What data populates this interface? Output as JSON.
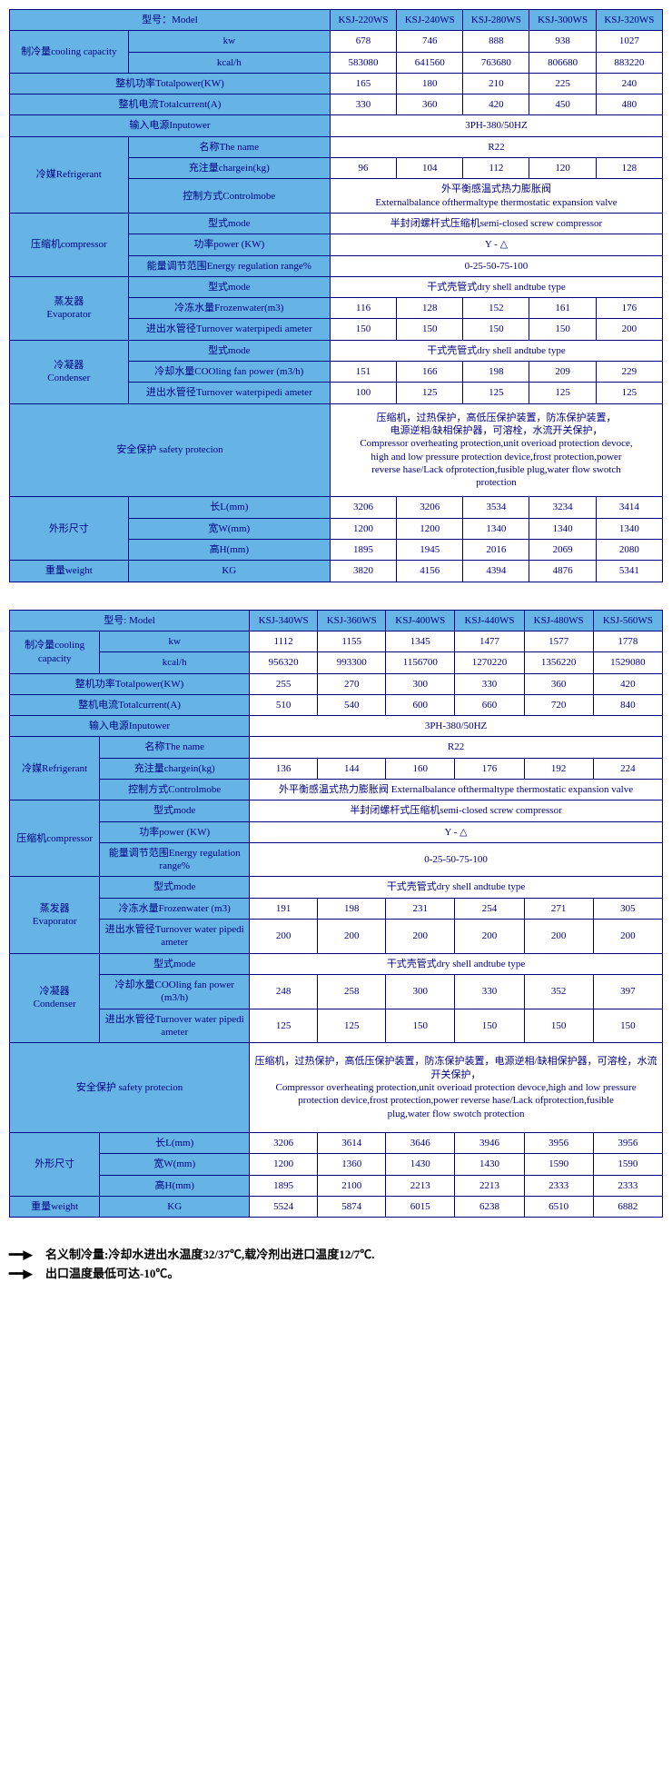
{
  "colors": {
    "header_bg": "#66b3e6",
    "cell_bg": "#ffffff",
    "border": "#000080",
    "text": "#000080"
  },
  "t1": {
    "models": [
      "KSJ-220WS",
      "KSJ-240WS",
      "KSJ-280WS",
      "KSJ-300WS",
      "KSJ-320WS"
    ],
    "lbl_model": "型号：Model",
    "lbl_cooling": "制冷量cooling capacity",
    "lbl_kw": "kw",
    "lbl_kcal": "kcal/h",
    "kw": [
      "678",
      "746",
      "888",
      "938",
      "1027"
    ],
    "kcal": [
      "583080",
      "641560",
      "763680",
      "806680",
      "883220"
    ],
    "lbl_totalpower": "整机功率Totalpower(KW)",
    "totalpower": [
      "165",
      "180",
      "210",
      "225",
      "240"
    ],
    "lbl_totalcurrent": "整机电流Totalcurrent(A)",
    "totalcurrent": [
      "330",
      "360",
      "420",
      "450",
      "480"
    ],
    "lbl_inputpower": "输入电源Inputower",
    "inputpower": "3PH-380/50HZ",
    "lbl_refrigerant": "冷媒Refrigerant",
    "lbl_thename": "名称The name",
    "thename": "R22",
    "lbl_chargein": "充注量chargein(kg)",
    "chargein": [
      "96",
      "104",
      "112",
      "120",
      "128"
    ],
    "lbl_controlmode": "控制方式Controlmobe",
    "controlmode": "外平衡感温式热力膨胀阀\nExternalbalance ofthermaltype thermostatic expansion valve",
    "lbl_compressor": "压缩机compressor",
    "lbl_mode": "型式mode",
    "compressor_mode": "半封闭螺杆式压缩机semi-closed screw compressor",
    "lbl_powerkw": "功率power (KW)",
    "powerkw": "Y - △",
    "lbl_energyrange": "能量调节范围Energy regulation range%",
    "energyrange": "0-25-50-75-100",
    "lbl_evaporator": "蒸发器\nEvaporator",
    "evap_mode": "干式壳管式dry shell andtube type",
    "lbl_frozenwater": "冷冻水量Frozenwater(m3)",
    "frozenwater": [
      "116",
      "128",
      "152",
      "161",
      "176"
    ],
    "lbl_turnover": "进出水管径Turnover waterpipedi ameter",
    "evap_turnover": [
      "150",
      "150",
      "150",
      "150",
      "200"
    ],
    "lbl_condenser": "冷凝器\nCondenser",
    "cond_mode": "干式壳管式dry shell andtube type",
    "lbl_coolingfan": "冷却水量COOling fan power (m3/h)",
    "coolingfan": [
      "151",
      "166",
      "198",
      "209",
      "229"
    ],
    "cond_turnover": [
      "100",
      "125",
      "125",
      "125",
      "125"
    ],
    "lbl_safety": "安全保护  safety protecion",
    "safety": "压缩机，过热保护，高低压保护装置，防冻保护装置，\n电源逆相/缺相保护器，可溶栓，水流开关保护，\nCompressor overheating protection,unit overioad protection devoce,\nhigh and low pressure protection device,frost protection,power\nreverse hase/Lack ofprotection,fusible plug,water flow swotch\nprotection",
    "lbl_dims": "外形尺寸",
    "lbl_L": "长L(mm)",
    "L": [
      "3206",
      "3206",
      "3534",
      "3234",
      "3414"
    ],
    "lbl_W": "宽W(mm)",
    "W": [
      "1200",
      "1200",
      "1340",
      "1340",
      "1340"
    ],
    "lbl_H": "高H(mm)",
    "H": [
      "1895",
      "1945",
      "2016",
      "2069",
      "2080"
    ],
    "lbl_weight": "重量weight",
    "lbl_kg": "KG",
    "weight": [
      "3820",
      "4156",
      "4394",
      "4876",
      "5341"
    ]
  },
  "t2": {
    "models": [
      "KSJ-340WS",
      "KSJ-360WS",
      "KSJ-400WS",
      "KSJ-440WS",
      "KSJ-480WS",
      "KSJ-560WS"
    ],
    "lbl_model": "型号: Model",
    "lbl_cooling": "制冷量cooling capacity",
    "lbl_kw": "kw",
    "lbl_kcal": "kcal/h",
    "kw": [
      "1112",
      "1155",
      "1345",
      "1477",
      "1577",
      "1778"
    ],
    "kcal": [
      "956320",
      "993300",
      "1156700",
      "1270220",
      "1356220",
      "1529080"
    ],
    "lbl_totalpower": "整机功率Totalpower(KW)",
    "totalpower": [
      "255",
      "270",
      "300",
      "330",
      "360",
      "420"
    ],
    "lbl_totalcurrent": "整机电流Totalcurrent(A)",
    "totalcurrent": [
      "510",
      "540",
      "600",
      "660",
      "720",
      "840"
    ],
    "lbl_inputpower": "输入电源Inputower",
    "inputpower": "3PH-380/50HZ",
    "lbl_refrigerant": "冷媒Refrigerant",
    "lbl_thename": "名称The name",
    "thename": "R22",
    "lbl_chargein": "充注量chargein(kg)",
    "chargein": [
      "136",
      "144",
      "160",
      "176",
      "192",
      "224"
    ],
    "lbl_controlmode": "控制方式Controlmobe",
    "controlmode": "外平衡感温式热力膨胀阀 Externalbalance ofthermaltype thermostatic expansion valve",
    "lbl_compressor": "压缩机compressor",
    "lbl_mode": "型式mode",
    "compressor_mode": "半封闭螺杆式压缩机semi-closed screw compressor",
    "lbl_powerkw": "功率power (KW)",
    "powerkw": "Y - △",
    "lbl_energyrange": "能量调节范围Energy regulation range%",
    "energyrange": "0-25-50-75-100",
    "lbl_evaporator": "蒸发器\nEvaporator",
    "evap_mode": "干式壳管式dry shell andtube type",
    "lbl_frozenwater": "冷冻水量Frozenwater (m3)",
    "frozenwater": [
      "191",
      "198",
      "231",
      "254",
      "271",
      "305"
    ],
    "lbl_turnover": "进出水管径Turnover water pipedi ameter",
    "evap_turnover": [
      "200",
      "200",
      "200",
      "200",
      "200",
      "200"
    ],
    "lbl_condenser": "冷凝器\nCondenser",
    "cond_mode": "干式壳管式dry shell andtube type",
    "lbl_coolingfan": "冷却水量COOling fan power (m3/h)",
    "coolingfan": [
      "248",
      "258",
      "300",
      "330",
      "352",
      "397"
    ],
    "cond_turnover": [
      "125",
      "125",
      "150",
      "150",
      "150",
      "150"
    ],
    "lbl_safety": "安全保护  safety protecion",
    "safety": "压缩机，过热保护，高低压保护装置，防冻保护装置，电源逆相/缺相保护器，可溶栓，水流开关保护，\nCompressor overheating protection,unit overioad protection devoce,high and low pressure\nprotection device,frost protection,power reverse hase/Lack ofprotection,fusible\nplug,water flow swotch protection",
    "lbl_dims": "外形尺寸",
    "lbl_L": "长L(mm)",
    "L": [
      "3206",
      "3614",
      "3646",
      "3946",
      "3956",
      "3956"
    ],
    "lbl_W": "宽W(mm)",
    "W": [
      "1200",
      "1360",
      "1430",
      "1430",
      "1590",
      "1590"
    ],
    "lbl_H": "高H(mm)",
    "H": [
      "1895",
      "2100",
      "2213",
      "2213",
      "2333",
      "2333"
    ],
    "lbl_weight": "重量weight",
    "lbl_kg": "KG",
    "weight": [
      "5524",
      "5874",
      "6015",
      "6238",
      "6510",
      "6882"
    ]
  },
  "notes": {
    "n1": "名义制冷量:冷却水进出水温度32/37℃,载冷剂出进口温度12/7℃.",
    "n2": "出口温度最低可达-10℃。"
  }
}
